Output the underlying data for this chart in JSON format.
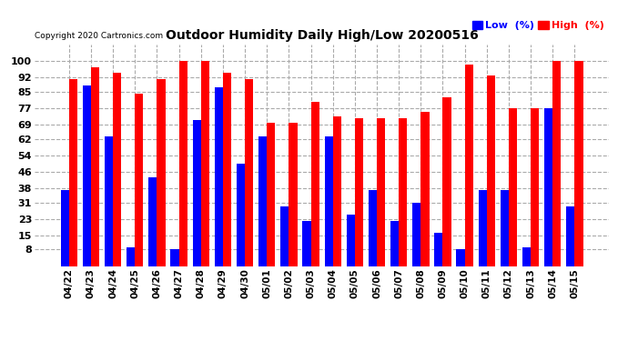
{
  "title": "Outdoor Humidity Daily High/Low 20200516",
  "copyright": "Copyright 2020 Cartronics.com",
  "categories": [
    "04/22",
    "04/23",
    "04/24",
    "04/25",
    "04/26",
    "04/27",
    "04/28",
    "04/29",
    "04/30",
    "05/01",
    "05/02",
    "05/03",
    "05/04",
    "05/05",
    "05/06",
    "05/07",
    "05/08",
    "05/09",
    "05/10",
    "05/11",
    "05/12",
    "05/13",
    "05/14",
    "05/15"
  ],
  "high_values": [
    91,
    97,
    94,
    84,
    91,
    100,
    100,
    94,
    91,
    70,
    70,
    80,
    73,
    72,
    72,
    72,
    75,
    82,
    98,
    93,
    77,
    77,
    100,
    100
  ],
  "low_values": [
    37,
    88,
    63,
    9,
    43,
    8,
    71,
    87,
    50,
    63,
    29,
    22,
    63,
    25,
    37,
    22,
    31,
    16,
    8,
    37,
    37,
    9,
    77,
    29
  ],
  "high_color": "#ff0000",
  "low_color": "#0000ff",
  "bg_color": "#ffffff",
  "ylim": [
    0,
    108
  ],
  "yticks": [
    8,
    15,
    23,
    31,
    38,
    46,
    54,
    62,
    69,
    77,
    85,
    92,
    100
  ],
  "grid_color": "#aaaaaa",
  "bar_width": 0.38,
  "legend_low_label": "Low  (%)",
  "legend_high_label": "High  (%)"
}
